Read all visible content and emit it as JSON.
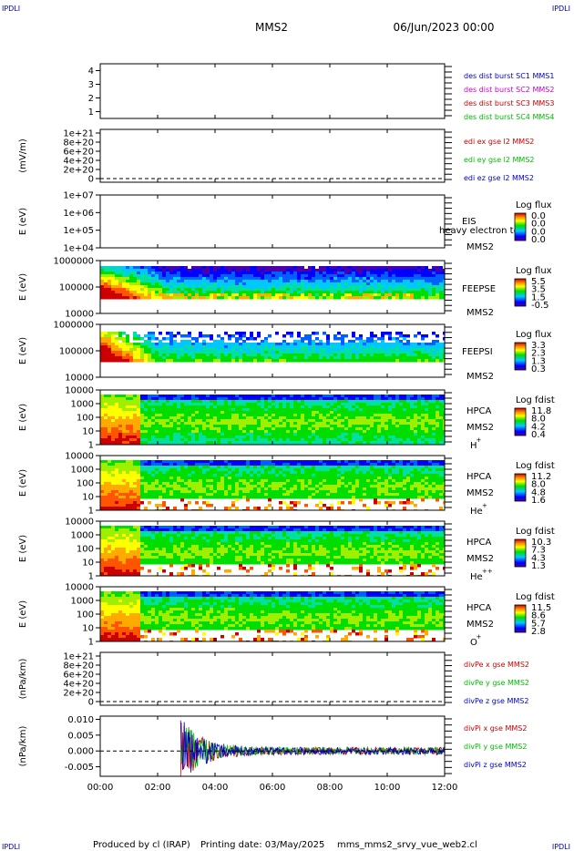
{
  "corner_text": "IPDLI",
  "header": {
    "title": "MMS2",
    "date": "06/Jun/2023 00:00"
  },
  "footer": {
    "produced_by": "Produced by cl (IRAP)",
    "printing_date": "Printing date: 03/May/2025",
    "script_name": "mms_mms2_srvy_vue_web2.cl"
  },
  "time_axis": {
    "labels": [
      "00:00",
      "02:00",
      "04:00",
      "06:00",
      "08:00",
      "10:00",
      "12:00"
    ],
    "range_hours": [
      0,
      12
    ]
  },
  "chart_data": [
    {
      "type": "line",
      "name": "burst",
      "y_ticks": [
        "4",
        "3",
        "2",
        "1"
      ],
      "ylim": [
        0.5,
        4.5
      ],
      "legend": [
        {
          "label": "des dist burst SC1 MMS1",
          "color": "#0000cc"
        },
        {
          "label": "des dist burst SC2 MMS2",
          "color": "#cc00cc"
        },
        {
          "label": "des dist burst SC3 MMS3",
          "color": "#cc0000"
        },
        {
          "label": "des dist burst SC4 MMS4",
          "color": "#00bb00"
        }
      ]
    },
    {
      "type": "line",
      "name": "edi",
      "ylabel": "(mV/m)",
      "y_ticks": [
        "1e+21",
        "8e+20",
        "6e+20",
        "4e+20",
        "2e+20",
        "0"
      ],
      "legend": [
        {
          "label": "edi ex gse l2 MMS2",
          "color": "#cc0000"
        },
        {
          "label": "edi ey gse l2 MMS2",
          "color": "#00bb00"
        },
        {
          "label": "edi ez gse l2 MMS2",
          "color": "#0000cc"
        }
      ]
    },
    {
      "type": "heatmap",
      "name": "eis",
      "ylabel": "E (eV)",
      "y_ticks": [
        "1e+07",
        "1e+06",
        "1e+05",
        "1e+04"
      ],
      "side_labels": [
        "EIS",
        "MMS2"
      ],
      "overlay_text": "heavy electron to",
      "colorbar": {
        "title": "Log flux",
        "ticks": [
          "0.0",
          "0.0",
          "0.0",
          "0.0"
        ]
      }
    },
    {
      "type": "heatmap",
      "name": "feepse",
      "ylabel": "E (eV)",
      "y_ticks": [
        "1000000",
        "100000",
        "10000"
      ],
      "side_labels": [
        "FEEPSE",
        "MMS2"
      ],
      "colorbar": {
        "title": "Log flux",
        "ticks": [
          "5.5",
          "3.5",
          "1.5",
          "-0.5"
        ]
      }
    },
    {
      "type": "heatmap",
      "name": "feepsi",
      "ylabel": "E (eV)",
      "y_ticks": [
        "1000000",
        "100000",
        "10000"
      ],
      "side_labels": [
        "FEEPSI",
        "MMS2"
      ],
      "colorbar": {
        "title": "Log flux",
        "ticks": [
          "3.3",
          "2.3",
          "1.3",
          "0.3"
        ]
      }
    },
    {
      "type": "heatmap",
      "name": "hpca-h",
      "ylabel": "E (eV)",
      "y_ticks": [
        "10000",
        "1000",
        "100",
        "10",
        "1"
      ],
      "side_labels": [
        "HPCA",
        "MMS2",
        "H",
        "+"
      ],
      "colorbar": {
        "title": "Log fdist",
        "ticks": [
          "11.8",
          "8.0",
          "4.2",
          "0.4"
        ]
      }
    },
    {
      "type": "heatmap",
      "name": "hpca-he",
      "ylabel": "E (eV)",
      "y_ticks": [
        "10000",
        "1000",
        "100",
        "10",
        "1"
      ],
      "side_labels": [
        "HPCA",
        "MMS2",
        "He",
        "+"
      ],
      "colorbar": {
        "title": "Log fdist",
        "ticks": [
          "11.2",
          "8.0",
          "4.8",
          "1.6"
        ]
      }
    },
    {
      "type": "heatmap",
      "name": "hpca-hepp",
      "ylabel": "E (eV)",
      "y_ticks": [
        "10000",
        "1000",
        "100",
        "10",
        "1"
      ],
      "side_labels": [
        "HPCA",
        "MMS2",
        "He",
        "++"
      ],
      "colorbar": {
        "title": "Log fdist",
        "ticks": [
          "10.3",
          "7.3",
          "4.3",
          "1.3"
        ]
      }
    },
    {
      "type": "heatmap",
      "name": "hpca-o",
      "ylabel": "E (eV)",
      "y_ticks": [
        "10000",
        "1000",
        "100",
        "10",
        "1"
      ],
      "side_labels": [
        "HPCA",
        "MMS2",
        "O",
        "+"
      ],
      "colorbar": {
        "title": "Log fdist",
        "ticks": [
          "11.5",
          "8.6",
          "5.7",
          "2.8"
        ]
      }
    },
    {
      "type": "line",
      "name": "divpe",
      "ylabel": "(nPa/km)",
      "y_ticks": [
        "1e+21",
        "8e+20",
        "6e+20",
        "4e+20",
        "2e+20",
        "0"
      ],
      "legend": [
        {
          "label": "divPe x gse MMS2",
          "color": "#cc0000"
        },
        {
          "label": "divPe y gse MMS2",
          "color": "#00bb00"
        },
        {
          "label": "divPe z gse MMS2",
          "color": "#0000cc"
        }
      ]
    },
    {
      "type": "line",
      "name": "divpi",
      "ylabel": "(nPa/km)",
      "y_ticks": [
        "0.010",
        "0.005",
        "0.000",
        "-0.005"
      ],
      "ylim": [
        -0.008,
        0.011
      ],
      "legend": [
        {
          "label": "divPi x gse MMS2",
          "color": "#cc0000"
        },
        {
          "label": "divPi y gse MMS2",
          "color": "#00bb00"
        },
        {
          "label": "divPi z gse MMS2",
          "color": "#0000cc"
        }
      ]
    }
  ]
}
